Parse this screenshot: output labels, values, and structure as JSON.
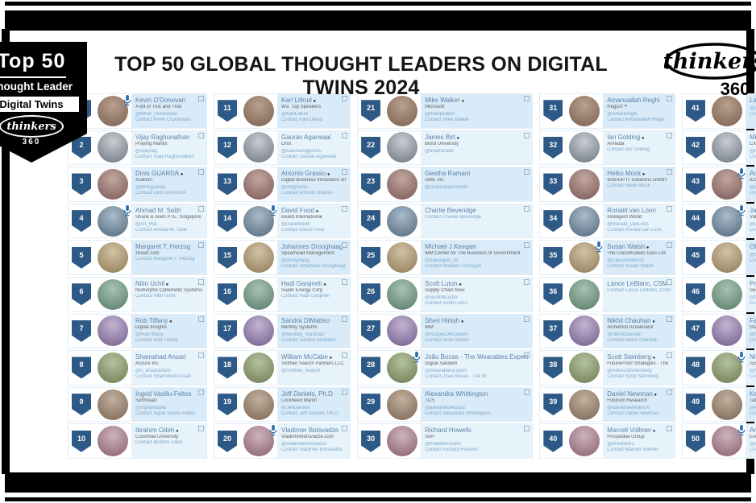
{
  "header": {
    "title": "TOP 50 GLOBAL THOUGHT LEADERS ON DIGITAL TWINS 2024"
  },
  "award_badge": {
    "line1": "Top 50",
    "line2": "Thought Leader",
    "line3": "Digital Twins",
    "brand": "thinkers",
    "brand_number": "360"
  },
  "logo": {
    "brand": "thinkers",
    "number": "360"
  },
  "colors": {
    "rank_shield": "#2d5986",
    "card_bg": "#d9ebf8",
    "card_bg_alt": "#e7f3fb",
    "accent_blue": "#2f6fae",
    "frame_black": "#000000"
  },
  "avatar_colors": [
    [
      "#b9a18f",
      "#7a5f4d"
    ],
    [
      "#c9cdd2",
      "#6b7480"
    ],
    [
      "#c2a8a0",
      "#7a5555"
    ],
    [
      "#a9bccb",
      "#51677a"
    ],
    [
      "#d2c2a4",
      "#8d7a55"
    ],
    [
      "#a8c2b4",
      "#557a66"
    ],
    [
      "#c4b4d2",
      "#6f5c8a"
    ],
    [
      "#b4c2a0",
      "#6d7a50"
    ],
    [
      "#c2b0a0",
      "#7a6450"
    ],
    [
      "#ccb4bc",
      "#8a5c6f"
    ]
  ],
  "entries": [
    {
      "rank": 1,
      "name": "Kevin O'Donovan",
      "company": "A Bit of This and That",
      "handle": "@kevin_ODonovan",
      "contact": "Contact Kevin O'Donovan",
      "mic": true,
      "badge": false
    },
    {
      "rank": 2,
      "name": "Vijay Raghunathan",
      "company": "Praying Mantis",
      "handle": "@vijayrag",
      "contact": "Contact Vijay Raghunathan",
      "mic": false,
      "badge": false
    },
    {
      "rank": 3,
      "name": "Dinis GUARDA",
      "company": "ztudium",
      "handle": "@dinisguarda",
      "contact": "Contact Dinis GUARDA",
      "mic": false,
      "badge": true
    },
    {
      "rank": 4,
      "name": "Ahmad M. Salih",
      "company": "Sharik & Alam PTE, Singapore",
      "handle": "@Ah_Rsk",
      "contact": "Contact Ahmad M. Salih",
      "mic": true,
      "badge": false
    },
    {
      "rank": 5,
      "name": "Margaret T. Herzog",
      "company": "zheart.com",
      "handle": "",
      "contact": "Contact Margaret T. Herzog",
      "mic": false,
      "badge": false
    },
    {
      "rank": 6,
      "name": "Nitin Uchil",
      "company": "Numorpho Cybernetic Systems",
      "handle": "",
      "contact": "Contact Nitin Uchil",
      "mic": false,
      "badge": true
    },
    {
      "rank": 7,
      "name": "Rob Tiffany",
      "company": "Digital Insights",
      "handle": "@RobTiffany",
      "contact": "Contact Rob Tiffany",
      "mic": false,
      "badge": true
    },
    {
      "rank": 8,
      "name": "Shamshad Ansari",
      "company": "Accure Inc.",
      "handle": "@s_ansarisham",
      "contact": "Contact Shamshad Ansari",
      "mic": false,
      "badge": false
    },
    {
      "rank": 9,
      "name": "Ingrid Vasiliu-Feltes",
      "company": "Softhread",
      "handle": "@IngridVasiliu",
      "contact": "Contact Ingrid Vasiliu-Feltes",
      "mic": false,
      "badge": false
    },
    {
      "rank": 10,
      "name": "Ibrahim Odeh",
      "company": "Columbia University",
      "handle": "",
      "contact": "Contact Ibrahim Odeh",
      "mic": false,
      "badge": true
    },
    {
      "rank": 11,
      "name": "Karl Lillrud",
      "company": "W3. Top Speakers",
      "handle": "@KarlLillrud",
      "contact": "Contact Karl Lillrud",
      "mic": false,
      "badge": true
    },
    {
      "rank": 12,
      "name": "Gaurav Agarwaal",
      "company": "Onix",
      "handle": "@GauravAgg2015",
      "contact": "Contact Gaurav Agarwaal",
      "mic": false,
      "badge": false
    },
    {
      "rank": 13,
      "name": "Antonio Grasso",
      "company": "Digital Business Innovation srl",
      "handle": "@antgrasso",
      "contact": "Contact Antonio Grasso",
      "mic": false,
      "badge": true
    },
    {
      "rank": 14,
      "name": "David Food",
      "company": "Board International",
      "handle": "@Davefood4",
      "contact": "Contact David Food",
      "mic": true,
      "badge": true
    },
    {
      "rank": 15,
      "name": "Johannes Drooghaag",
      "company": "Spearhead Management",
      "handle": "@drooghaag",
      "contact": "Contact Johannes Drooghaag",
      "mic": false,
      "badge": false
    },
    {
      "rank": 16,
      "name": "Hadi Ganjineh",
      "company": "Super Energy Corp",
      "handle": "",
      "contact": "Contact Hadi Ganjineh",
      "mic": false,
      "badge": true
    },
    {
      "rank": 17,
      "name": "Sandra DiMatteo",
      "company": "Bentley Systems",
      "handle": "@Bentley_SandraD",
      "contact": "Contact Sandra DiMatteo",
      "mic": false,
      "badge": false
    },
    {
      "rank": 18,
      "name": "William McCabe",
      "company": "SoftNet Search Partners LLC",
      "handle": "@SoftNet_Search",
      "contact": "",
      "mic": false,
      "badge": true
    },
    {
      "rank": 19,
      "name": "Jeff Daniels, Ph.D",
      "company": "Lockheed Martin",
      "handle": "@JeffDaniels",
      "contact": "Contact Jeff Daniels, Ph.D",
      "mic": false,
      "badge": false
    },
    {
      "rank": 20,
      "name": "Vladimer Botsvadze",
      "company": "VladimerBotsvadze.com",
      "handle": "@vladimerbotsvadze",
      "contact": "Contact Vladimer Botsvadze",
      "mic": true,
      "badge": false
    },
    {
      "rank": 21,
      "name": "Mike Walker",
      "company": "Microsoft",
      "handle": "@mikejwalker",
      "contact": "Contact Mike Walker",
      "mic": false,
      "badge": true
    },
    {
      "rank": 22,
      "name": "James Birt",
      "company": "Bond University",
      "handle": "@drjamesbirt",
      "contact": "",
      "mic": false,
      "badge": true
    },
    {
      "rank": 23,
      "name": "Geetha Ramani",
      "company": "ABB, Inc.",
      "handle": "@GRamanamoorthi",
      "contact": "",
      "mic": false,
      "badge": false
    },
    {
      "rank": 24,
      "name": "Charlie Beveridge",
      "company": "",
      "handle": "",
      "contact": "Contact Charlie Beveridge",
      "mic": false,
      "badge": false
    },
    {
      "rank": 25,
      "name": "Michael J Keegan",
      "company": "IBM Center for The Business of Government",
      "handle": "@mjkeegan_dc",
      "contact": "Contact Michael J Keegan",
      "mic": false,
      "badge": false
    },
    {
      "rank": 26,
      "name": "Scott Luton",
      "company": "Supply Chain Now",
      "handle": "@ScottWLuton",
      "contact": "Contact Scott Luton",
      "mic": false,
      "badge": true
    },
    {
      "rank": 27,
      "name": "Sheri Hinish",
      "company": "IBM",
      "handle": "@SupplyChnQueen",
      "contact": "Contact Sheri Hinish",
      "mic": false,
      "badge": true
    },
    {
      "rank": 28,
      "name": "João Bocas - The Wearables Expert",
      "company": "Digital Salutem",
      "handle": "@WearablesExpert",
      "contact": "Contact João Bocas - The W",
      "mic": true,
      "badge": false
    },
    {
      "rank": 29,
      "name": "Alexandra Whittington",
      "company": "TCS",
      "handle": "@alexandra4casts",
      "contact": "Contact Alexandra Whittington",
      "mic": false,
      "badge": false
    },
    {
      "rank": 30,
      "name": "Richard Howells",
      "company": "SAP",
      "handle": "@howellsrichard",
      "contact": "Contact Richard Howells",
      "mic": false,
      "badge": false
    },
    {
      "rank": 31,
      "name": "Amanuallah Reghi",
      "company": "RegDX™",
      "handle": "@AmanReghi",
      "contact": "Contact Amanuallah Reghi",
      "mic": false,
      "badge": false
    },
    {
      "rank": 32,
      "name": "Ian Golding",
      "company": "Armada",
      "handle": "",
      "contact": "Contact Ian Golding",
      "mic": false,
      "badge": true
    },
    {
      "rank": 33,
      "name": "Heiko Mock",
      "company": "W3DUP IT Solutions GmbH",
      "handle": "",
      "contact": "Contact Heiko Mock",
      "mic": false,
      "badge": true
    },
    {
      "rank": 34,
      "name": "Ronald van Loon",
      "company": "Intelligent World",
      "handle": "@Ronald_vanLoon",
      "contact": "Contact Ronald van Loon",
      "mic": false,
      "badge": false
    },
    {
      "rank": 35,
      "name": "Susan Walsh",
      "company": "The Classification Guru Ltd",
      "handle": "@ClassificationG",
      "contact": "Contact Susan Walsh",
      "mic": true,
      "badge": true
    },
    {
      "rank": 36,
      "name": "Lance LeBlanc, CSM",
      "company": "",
      "handle": "",
      "contact": "Contact Lance LeBlanc, CSM",
      "mic": false,
      "badge": false
    },
    {
      "rank": 37,
      "name": "Nikhil Chauhan",
      "company": "Alchemist Accelerator",
      "handle": "@nikhilchauhan",
      "contact": "Contact Nikhil Chauhan",
      "mic": false,
      "badge": true
    },
    {
      "rank": 38,
      "name": "Scott Steinberg",
      "company": "FutureProof Strategies - The",
      "handle": "@AskScottSteinberg",
      "contact": "Contact Scott Steinberg",
      "mic": false,
      "badge": true
    },
    {
      "rank": 39,
      "name": "Daniel Newman",
      "company": "Futurum Research",
      "handle": "@danielnewmanUV",
      "contact": "Contact Daniel Newman",
      "mic": false,
      "badge": true
    },
    {
      "rank": 40,
      "name": "Marcell Vollmer",
      "company": "Prospitalia Group",
      "handle": "@mvollmer1",
      "contact": "Contact Marcell Vollmer",
      "mic": false,
      "badge": true
    },
    {
      "rank": 41,
      "name": "Larry Boyer",
      "company": "",
      "handle": "@LarryBoyer",
      "contact": "Contact Larry Boyer",
      "mic": false,
      "badge": true
    },
    {
      "rank": 42,
      "name": "Michael Krigsman",
      "company": "CXOTalk",
      "handle": "@mkrigsman",
      "contact": "Contact Michael Krigsman",
      "mic": false,
      "badge": false
    },
    {
      "rank": 43,
      "name": "Andrey Golub",
      "company": "ICOL Group",
      "handle": "@aVg",
      "contact": "Contact Andrey Golub",
      "mic": true,
      "badge": false
    },
    {
      "rank": 44,
      "name": "Jair Pinto Ribeiro",
      "company": "Vale Group",
      "handle": "@uberchain",
      "contact": "Contact Jair Pinto Ribeiro",
      "mic": true,
      "badge": false
    },
    {
      "rank": 45,
      "name": "Oleg Shilovitsky",
      "company": "",
      "handle": "@olegshilovitsky",
      "contact": "Contact Oleg Shilovitsky",
      "mic": false,
      "badge": false
    },
    {
      "rank": 46,
      "name": "Prayukth K V",
      "company": "Sectrio",
      "handle": "@things_internet",
      "contact": "Contact Prayukth K V",
      "mic": false,
      "badge": false
    },
    {
      "rank": 47,
      "name": "Fabian Schmidt",
      "company": "SIV AG",
      "handle": "@fabschmidt",
      "contact": "Contact Fabian Schmidt",
      "mic": false,
      "badge": false
    },
    {
      "rank": 48,
      "name": "Nick Ayton",
      "company": "Systems Reloaded Ltd",
      "handle": "@NickAyton",
      "contact": "Contact Nick Ayton",
      "mic": true,
      "badge": true
    },
    {
      "rank": 49,
      "name": "Kevin Benedict",
      "company": "Tata Consultancy Services",
      "handle": "@krbenedict",
      "contact": "Contact Kevin Benedict",
      "mic": false,
      "badge": true
    },
    {
      "rank": 50,
      "name": "Antonio Santos",
      "company": "Exeter - Atos Group",
      "handle": "@akwyz",
      "contact": "Contact Antonio Santos",
      "mic": true,
      "badge": false
    }
  ]
}
